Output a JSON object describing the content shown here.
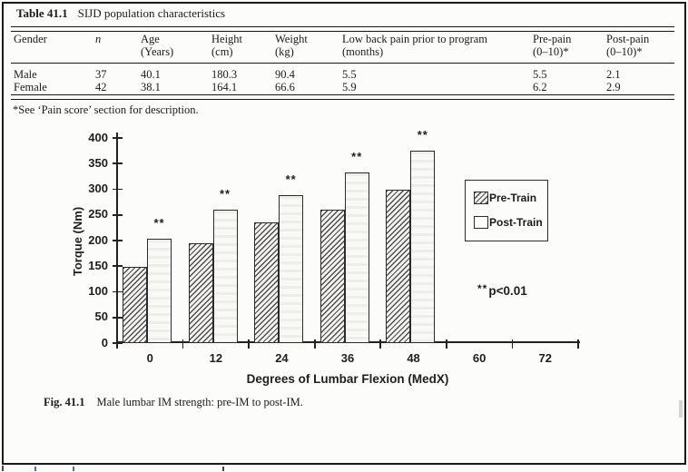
{
  "page": {
    "table": {
      "label": "Table 41.1",
      "title": "SIJD population characteristics",
      "columns": [
        {
          "l1": "Gender",
          "l2": ""
        },
        {
          "l1": "n",
          "l2": ""
        },
        {
          "l1": "Age",
          "l2": "(Years)"
        },
        {
          "l1": "Height",
          "l2": "(cm)"
        },
        {
          "l1": "Weight",
          "l2": "(kg)"
        },
        {
          "l1": "Low back pain prior to program",
          "l2": "(months)"
        },
        {
          "l1": "Pre-pain",
          "l2": "(0–10)*"
        },
        {
          "l1": "Post-pain",
          "l2": "(0–10)*"
        }
      ],
      "rows": [
        [
          "Male",
          "37",
          "40.1",
          "180.3",
          "90.4",
          "5.5",
          "5.5",
          "2.1"
        ],
        [
          "Female",
          "42",
          "38.1",
          "164.1",
          "66.6",
          "5.9",
          "6.2",
          "2.9"
        ]
      ],
      "footnote": "*See ‘Pain score’ section for description."
    },
    "figure": {
      "caption_label": "Fig. 41.1",
      "caption_text": "Male lumbar IM strength: pre-IM to post-IM."
    }
  },
  "chart_data": {
    "type": "bar",
    "title": "",
    "xlabel": "Degrees of Lumbar Flexion (MedX)",
    "ylabel": "Torque (Nm)",
    "categories": [
      "0",
      "12",
      "24",
      "36",
      "48",
      "60",
      "72"
    ],
    "series": [
      {
        "name": "Pre-Train",
        "values": [
          148,
          195,
          235,
          260,
          300,
          null,
          null
        ]
      },
      {
        "name": "Post-Train",
        "values": [
          203,
          260,
          288,
          333,
          375,
          null,
          null
        ]
      }
    ],
    "ylim": [
      0,
      400
    ],
    "ytick_step": 50,
    "grid": false,
    "legend_position": "right-inside",
    "significance": {
      "marker": "**",
      "text": "p<0.01"
    }
  }
}
